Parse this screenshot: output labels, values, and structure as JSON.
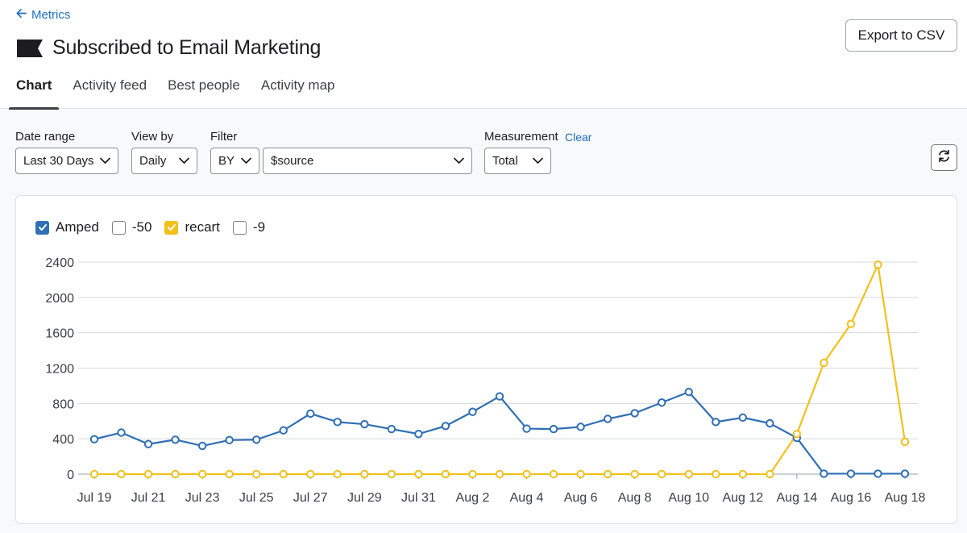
{
  "header": {
    "back_label": "Metrics",
    "title": "Subscribed to Email Marketing",
    "export_label": "Export to CSV"
  },
  "tabs": [
    {
      "label": "Chart",
      "active": true
    },
    {
      "label": "Activity feed",
      "active": false
    },
    {
      "label": "Best people",
      "active": false
    },
    {
      "label": "Activity map",
      "active": false
    }
  ],
  "controls": {
    "date_range": {
      "label": "Date range",
      "value": "Last 30 Days"
    },
    "view_by": {
      "label": "View by",
      "value": "Daily"
    },
    "filter": {
      "label": "Filter",
      "by_value": "BY",
      "field_value": "$source"
    },
    "measurement": {
      "label": "Measurement",
      "value": "Total",
      "clear_label": "Clear"
    }
  },
  "legend": [
    {
      "label": "Amped",
      "checked": true,
      "color": "#2f6fb5"
    },
    {
      "label": "-50",
      "checked": false,
      "color": "#2f6fb5"
    },
    {
      "label": "recart",
      "checked": true,
      "color": "#f2c01c"
    },
    {
      "label": "-9",
      "checked": false,
      "color": "#2f6fb5"
    }
  ],
  "chart_data": {
    "type": "line",
    "x": [
      "Jul 19",
      "Jul 20",
      "Jul 21",
      "Jul 22",
      "Jul 23",
      "Jul 24",
      "Jul 25",
      "Jul 26",
      "Jul 27",
      "Jul 28",
      "Jul 29",
      "Jul 30",
      "Jul 31",
      "Aug 1",
      "Aug 2",
      "Aug 3",
      "Aug 4",
      "Aug 5",
      "Aug 6",
      "Aug 7",
      "Aug 8",
      "Aug 9",
      "Aug 10",
      "Aug 11",
      "Aug 12",
      "Aug 13",
      "Aug 14",
      "Aug 15",
      "Aug 16",
      "Aug 17",
      "Aug 18"
    ],
    "x_tick_labels": [
      "Jul 19",
      "Jul 21",
      "Jul 23",
      "Jul 25",
      "Jul 27",
      "Jul 29",
      "Jul 31",
      "Aug 2",
      "Aug 4",
      "Aug 6",
      "Aug 8",
      "Aug 10",
      "Aug 12",
      "Aug 14",
      "Aug 16",
      "Aug 18"
    ],
    "y_ticks": [
      0,
      400,
      800,
      1200,
      1600,
      2000,
      2400
    ],
    "ylim": [
      0,
      2400
    ],
    "grid": true,
    "series": [
      {
        "name": "Amped",
        "color": "#2f6fb5",
        "values": [
          395,
          470,
          340,
          390,
          320,
          385,
          390,
          495,
          685,
          590,
          565,
          510,
          455,
          545,
          705,
          880,
          515,
          510,
          535,
          625,
          690,
          810,
          930,
          590,
          640,
          575,
          410,
          5,
          5,
          5,
          5
        ]
      },
      {
        "name": "recart",
        "color": "#f2c01c",
        "values": [
          0,
          0,
          0,
          0,
          0,
          0,
          0,
          0,
          0,
          0,
          0,
          0,
          0,
          0,
          0,
          0,
          0,
          0,
          0,
          0,
          0,
          0,
          0,
          0,
          0,
          0,
          455,
          1260,
          1700,
          2370,
          365
        ]
      }
    ]
  }
}
